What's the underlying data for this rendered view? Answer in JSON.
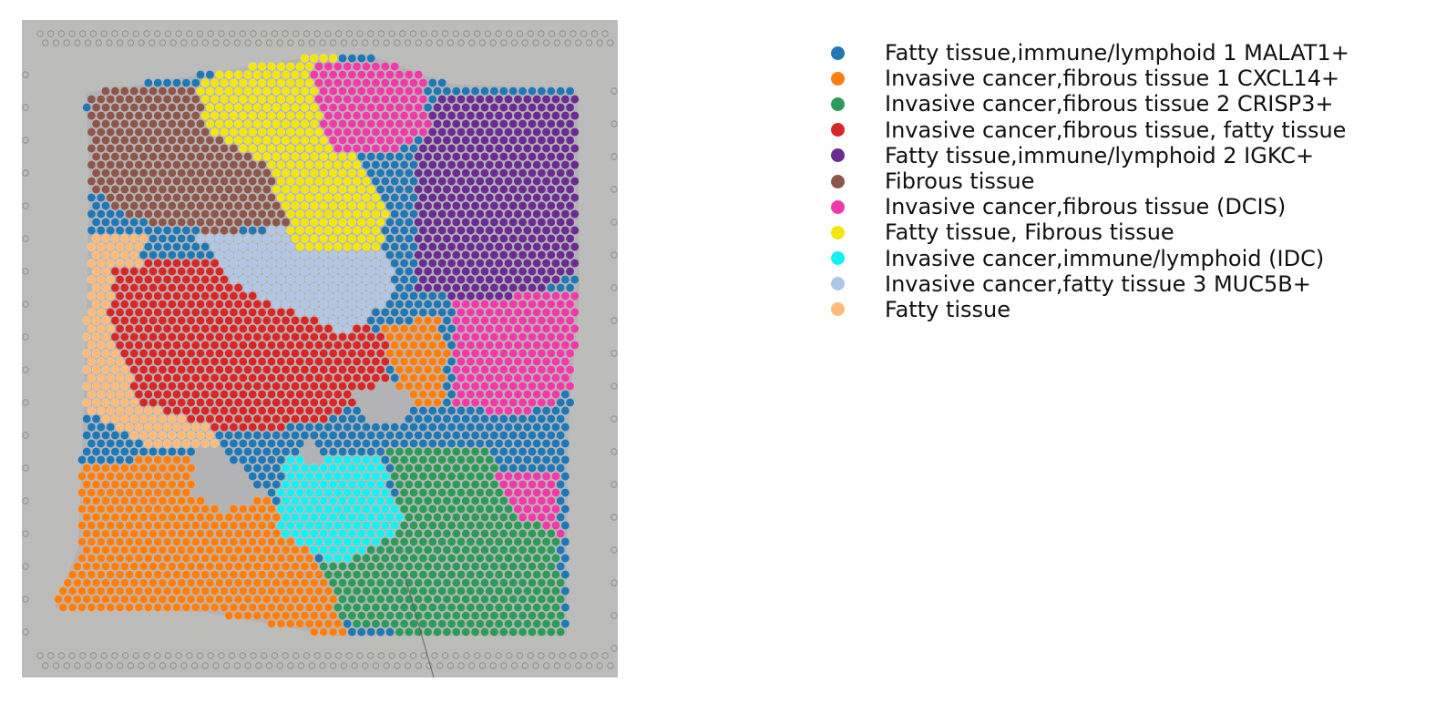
{
  "chart_data": {
    "type": "scatter",
    "title": "",
    "xlabel": "",
    "ylabel": "",
    "axes_visible": false,
    "grid": false,
    "legend_position": "right",
    "background": "H&E tissue image (grey)",
    "series": [
      {
        "name": "Fatty tissue,immune/lymphoid 1 MALAT1+",
        "color": "#1f77b4"
      },
      {
        "name": "Invasive cancer,fibrous tissue 1 CXCL14+",
        "color": "#ff7f0e"
      },
      {
        "name": "Invasive cancer,fibrous tissue 2 CRISP3+",
        "color": "#2e9a5a"
      },
      {
        "name": "Invasive cancer,fibrous tissue, fatty tissue",
        "color": "#d62728"
      },
      {
        "name": "Fatty tissue,immune/lymphoid 2 IGKC+",
        "color": "#6a2c91"
      },
      {
        "name": "Fibrous tissue",
        "color": "#8c564b"
      },
      {
        "name": "Invasive cancer,fibrous tissue (DCIS)",
        "color": "#f03aa7"
      },
      {
        "name": "Fatty tissue, Fibrous tissue",
        "color": "#f2e60c"
      },
      {
        "name": "Invasive cancer,immune/lymphoid (IDC)",
        "color": "#17f0f0"
      },
      {
        "name": "Invasive cancer,fatty tissue 3 MUC5B+",
        "color": "#aec7e8"
      },
      {
        "name": "Fatty tissue",
        "color": "#ffbb78"
      }
    ]
  }
}
